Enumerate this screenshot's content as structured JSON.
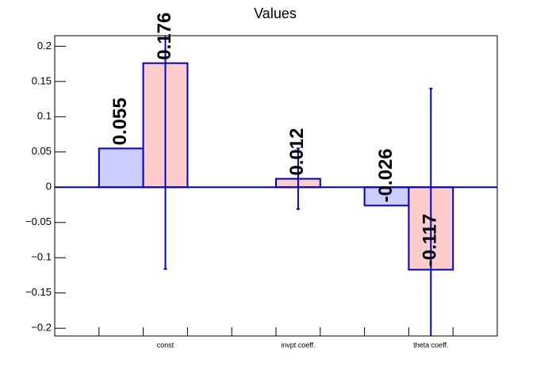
{
  "chart_data": {
    "type": "bar",
    "title": "Values",
    "categories": [
      "const",
      "invpt coeff.",
      "theta coeff."
    ],
    "series": [
      {
        "color": "#ccccff",
        "values": [
          0.055,
          null,
          -0.026
        ]
      },
      {
        "color": "#ffcccc",
        "values": [
          0.176,
          0.012,
          -0.117
        ],
        "errors": [
          0.292,
          0.043,
          0.257
        ]
      }
    ],
    "ylim": [
      -0.211,
      0.215
    ],
    "yticks": [
      0.2,
      0.15,
      0.1,
      0.05,
      0,
      {
        "value": -0.05,
        "label": "−0.05"
      },
      {
        "value": -0.1,
        "label": "−0.1"
      },
      {
        "value": -0.15,
        "label": "−0.15"
      },
      {
        "value": -0.2,
        "label": "−0.2"
      }
    ]
  }
}
